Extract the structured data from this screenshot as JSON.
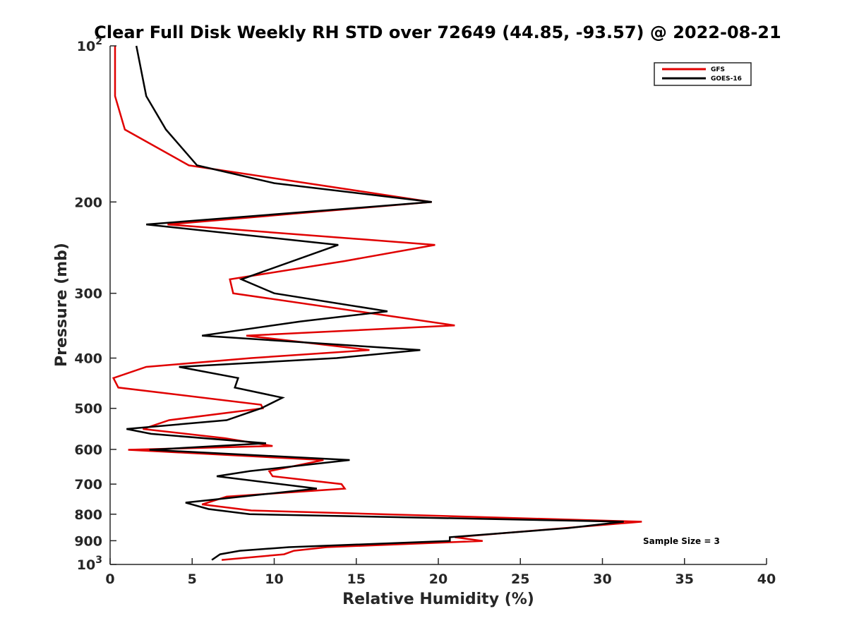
{
  "chart_data": {
    "type": "line",
    "title": "Clear Full Disk Weekly RH STD over 72649 (44.85, -93.57) @ 2022-08-21",
    "xlabel": "Relative Humidity (%)",
    "ylabel": "Pressure (mb)",
    "xlim": [
      0,
      40
    ],
    "ylim": [
      100,
      1000
    ],
    "yscale": "log",
    "y_reversed": true,
    "grid": false,
    "legend_position": "top-right",
    "x_ticks": [
      "0",
      "5",
      "10",
      "15",
      "20",
      "25",
      "30",
      "35",
      "40"
    ],
    "y_ticks": [
      {
        "value": 100,
        "base": "10",
        "exp": "2"
      },
      {
        "value": 200,
        "label": "200"
      },
      {
        "value": 300,
        "label": "300"
      },
      {
        "value": 400,
        "label": "400"
      },
      {
        "value": 500,
        "label": "500"
      },
      {
        "value": 600,
        "label": "600"
      },
      {
        "value": 700,
        "label": "700"
      },
      {
        "value": 800,
        "label": "800"
      },
      {
        "value": 900,
        "label": "900"
      },
      {
        "value": 1000,
        "base": "10",
        "exp": "3"
      }
    ],
    "series": [
      {
        "name": "GFS",
        "color": "#e00000",
        "points": [
          [
            0.3,
            100
          ],
          [
            0.3,
            125
          ],
          [
            0.9,
            145
          ],
          [
            4.8,
            170
          ],
          [
            19.6,
            200
          ],
          [
            3.5,
            221
          ],
          [
            19.8,
            242
          ],
          [
            14.3,
            260
          ],
          [
            7.3,
            282
          ],
          [
            7.5,
            300
          ],
          [
            21.0,
            346
          ],
          [
            8.3,
            362
          ],
          [
            15.8,
            386
          ],
          [
            8.6,
            400
          ],
          [
            2.2,
            416
          ],
          [
            0.2,
            437
          ],
          [
            0.5,
            456
          ],
          [
            9.2,
            492
          ],
          [
            9.3,
            500
          ],
          [
            3.6,
            527
          ],
          [
            2.0,
            548
          ],
          [
            7.0,
            571
          ],
          [
            9.9,
            591
          ],
          [
            1.1,
            601
          ],
          [
            13.0,
            629
          ],
          [
            9.7,
            661
          ],
          [
            9.9,
            676
          ],
          [
            14.1,
            700
          ],
          [
            14.3,
            714
          ],
          [
            7.1,
            740
          ],
          [
            5.6,
            766
          ],
          [
            8.6,
            787
          ],
          [
            32.4,
            827
          ],
          [
            21.0,
            886
          ],
          [
            22.7,
            901
          ],
          [
            13.2,
            926
          ],
          [
            11.2,
            941
          ],
          [
            10.6,
            956
          ],
          [
            6.8,
            980
          ]
        ]
      },
      {
        "name": "GOES-16",
        "color": "#000000",
        "points": [
          [
            1.6,
            100
          ],
          [
            2.2,
            125
          ],
          [
            3.4,
            145
          ],
          [
            5.3,
            170
          ],
          [
            10.0,
            184
          ],
          [
            19.6,
            200
          ],
          [
            2.2,
            221
          ],
          [
            13.9,
            242
          ],
          [
            8.0,
            282
          ],
          [
            10.0,
            300
          ],
          [
            16.9,
            325
          ],
          [
            11.6,
            340
          ],
          [
            5.6,
            362
          ],
          [
            18.9,
            386
          ],
          [
            13.8,
            400
          ],
          [
            4.2,
            416
          ],
          [
            7.8,
            437
          ],
          [
            7.6,
            456
          ],
          [
            10.5,
            477
          ],
          [
            9.2,
            500
          ],
          [
            7.1,
            527
          ],
          [
            1.0,
            548
          ],
          [
            2.5,
            560
          ],
          [
            9.5,
            584
          ],
          [
            2.4,
            601
          ],
          [
            14.6,
            629
          ],
          [
            8.5,
            661
          ],
          [
            6.5,
            676
          ],
          [
            12.6,
            714
          ],
          [
            4.6,
            760
          ],
          [
            6.0,
            782
          ],
          [
            8.5,
            800
          ],
          [
            31.3,
            827
          ],
          [
            27.9,
            851
          ],
          [
            20.7,
            886
          ],
          [
            20.7,
            901
          ],
          [
            10.9,
            926
          ],
          [
            7.9,
            941
          ],
          [
            6.7,
            956
          ],
          [
            6.2,
            980
          ]
        ]
      }
    ],
    "annotation": "Sample Size = 3"
  }
}
